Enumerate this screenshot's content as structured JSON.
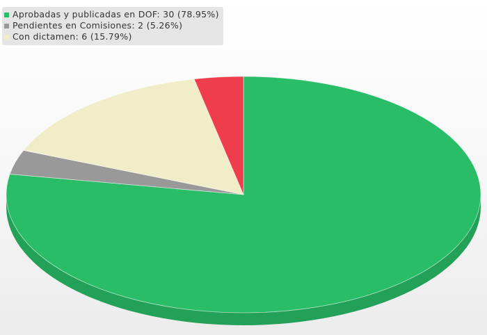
{
  "chart_data": {
    "type": "pie",
    "title": "",
    "legend_position": "top-left",
    "slices": [
      {
        "label": "Aprobadas y publicadas en DOF",
        "value": 30,
        "percent": 78.95,
        "color": "#2abd68",
        "legend_text": "Aprobadas y publicadas en DOF: 30  (78.95%)"
      },
      {
        "label": "Pendientes en Comisiones",
        "value": 2,
        "percent": 5.26,
        "color": "#999999",
        "legend_text": "Pendientes en Comisiones: 2  (5.26%)"
      },
      {
        "label": "Con dictamen",
        "value": 6,
        "percent": 15.79,
        "color": "#f0edc8",
        "legend_text": "Con dictamen: 6  (15.79%)"
      }
    ],
    "extra_slices": [
      {
        "color": "#ee3e4c"
      }
    ]
  }
}
